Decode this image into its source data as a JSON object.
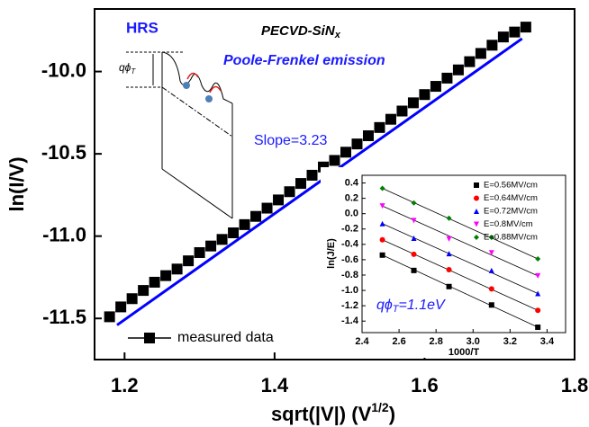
{
  "chart_data": [
    {
      "type": "scatter",
      "x": [
        1.18,
        1.195,
        1.21,
        1.225,
        1.24,
        1.255,
        1.27,
        1.285,
        1.3,
        1.315,
        1.33,
        1.345,
        1.36,
        1.375,
        1.39,
        1.405,
        1.42,
        1.435,
        1.45,
        1.465,
        1.48,
        1.495,
        1.51,
        1.525,
        1.54,
        1.555,
        1.57,
        1.585,
        1.6,
        1.615,
        1.63,
        1.645,
        1.66,
        1.675,
        1.69,
        1.705,
        1.72,
        1.735
      ],
      "series": [
        {
          "name": "measured data",
          "color": "#000000",
          "marker": "square",
          "values": [
            -11.49,
            -11.43,
            -11.38,
            -11.33,
            -11.28,
            -11.24,
            -11.2,
            -11.15,
            -11.1,
            -11.06,
            -11.02,
            -10.98,
            -10.93,
            -10.88,
            -10.83,
            -10.78,
            -10.73,
            -10.68,
            -10.63,
            -10.58,
            -10.54,
            -10.49,
            -10.44,
            -10.39,
            -10.34,
            -10.29,
            -10.24,
            -10.19,
            -10.14,
            -10.09,
            -10.04,
            -9.99,
            -9.94,
            -9.89,
            -9.84,
            -9.79,
            -9.76,
            -9.73
          ]
        }
      ],
      "fit": {
        "color": "#0000ff",
        "x": [
          1.19,
          1.73
        ],
        "y": [
          -11.54,
          -9.8
        ]
      },
      "xlabel": {
        "text": "sqrt(|V|) (V",
        "sup": "1/2",
        "after": ")"
      },
      "ylabel": "ln(I/V)",
      "xlim": [
        1.16,
        1.8
      ],
      "ylim": [
        -11.75,
        -9.62
      ],
      "xticks": [
        1.2,
        1.4,
        1.6,
        1.8
      ],
      "yticks": [
        {
          "value": -10,
          "label": "-10.0"
        },
        -10.5,
        {
          "value": -11,
          "label": "-11.0"
        },
        -11.5
      ],
      "annotations": [
        {
          "text": "HRS"
        },
        {
          "text": "PECVD-SiN",
          "sub": "x"
        },
        {
          "text": "Poole-Frenkel emission"
        },
        {
          "text": "Slope=3.23"
        },
        {
          "text": "qϕ",
          "sub": "T"
        }
      ]
    },
    {
      "type": "scatter",
      "x": [
        2.51,
        2.68,
        2.87,
        3.1,
        3.35
      ],
      "series": [
        {
          "name": "E=0.56MV/cm",
          "color": "#000000",
          "marker": "square",
          "values": [
            -0.54,
            -0.74,
            -0.95,
            -1.19,
            -1.48
          ]
        },
        {
          "name": "E=0.64MV/cm",
          "color": "#ff0000",
          "marker": "circle",
          "values": [
            -0.34,
            -0.53,
            -0.73,
            -0.98,
            -1.26
          ]
        },
        {
          "name": "E=0.72MV/cm",
          "color": "#0000ff",
          "marker": "triangle-up",
          "values": [
            -0.13,
            -0.32,
            -0.52,
            -0.74,
            -1.04
          ]
        },
        {
          "name": "E=0.8MV/cm",
          "color": "#ff00ff",
          "marker": "triangle-down",
          "values": [
            0.1,
            -0.09,
            -0.33,
            -0.51,
            -0.81
          ]
        },
        {
          "name": "E=0.88MV/cm",
          "color": "#008000",
          "marker": "diamond",
          "values": [
            0.33,
            0.14,
            -0.06,
            -0.31,
            -0.59
          ]
        }
      ],
      "xlabel": "1000/T",
      "ylabel": "ln(J/E)",
      "xlim": [
        2.4,
        3.5
      ],
      "ylim": [
        -1.55,
        0.5
      ],
      "xticks": [
        2.4,
        2.6,
        2.8,
        {
          "value": 3,
          "label": "3.0"
        },
        3.2,
        3.4
      ],
      "yticks": [
        0.4,
        0.2,
        {
          "value": 0,
          "label": "0.0"
        },
        -0.2,
        -0.4,
        -0.6,
        -0.8,
        {
          "value": -1,
          "label": "-1.0"
        },
        -1.2,
        -1.4
      ],
      "annotations": [
        {
          "text": "qϕ",
          "sub": "T",
          "after": "=1.1eV"
        }
      ]
    }
  ]
}
